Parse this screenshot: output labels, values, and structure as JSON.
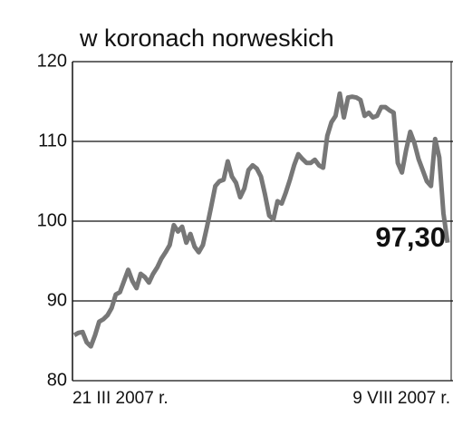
{
  "chart_data": {
    "type": "line",
    "title": "w koronach norweskich",
    "categories": [
      "21 III 2007 r.",
      null,
      null,
      null,
      null,
      null,
      null,
      null,
      null,
      null,
      null,
      null,
      null,
      null,
      null,
      null,
      null,
      null,
      null,
      null,
      null,
      null,
      null,
      null,
      null,
      null,
      null,
      null,
      null,
      null,
      null,
      null,
      null,
      null,
      null,
      null,
      null,
      null,
      null,
      null,
      null,
      null,
      null,
      null,
      null,
      null,
      null,
      null,
      null,
      null,
      null,
      null,
      null,
      null,
      null,
      null,
      null,
      null,
      null,
      null,
      null,
      null,
      null,
      null,
      null,
      null,
      null,
      null,
      null,
      null,
      null,
      null,
      null,
      null,
      null,
      null,
      null,
      null,
      null,
      null,
      null,
      null,
      null,
      null,
      null,
      null,
      null,
      null,
      null,
      null,
      "9 VIII 2007 r."
    ],
    "values": [
      85.7,
      86,
      86.1,
      84.8,
      84.3,
      85.7,
      87.4,
      87.7,
      88.2,
      89.1,
      90.8,
      91.1,
      92.5,
      93.9,
      92.5,
      91.6,
      93.4,
      93,
      92.3,
      93.4,
      94.2,
      95.3,
      96.1,
      97,
      99.5,
      98.7,
      99.3,
      97.3,
      98.4,
      96.8,
      96.1,
      97,
      99.3,
      101.8,
      104.4,
      105,
      105.2,
      107.5,
      105.6,
      104.8,
      103,
      104.1,
      106.4,
      107,
      106.6,
      105.6,
      103.3,
      100.7,
      100.2,
      102.5,
      102.2,
      103.6,
      105.2,
      107,
      108.4,
      107.8,
      107.3,
      107.3,
      107.7,
      107,
      106.7,
      110.7,
      112.4,
      113.2,
      116,
      113,
      115.5,
      115.6,
      115.5,
      115.2,
      113.2,
      113.6,
      113,
      113.2,
      114.3,
      114.3,
      113.9,
      113.6,
      107.3,
      106.1,
      108.9,
      111.2,
      109.8,
      107.8,
      106.4,
      105,
      104.4,
      110.3,
      108,
      101,
      97.3
    ],
    "value_labels": [
      null,
      null,
      null,
      null,
      null,
      null,
      null,
      null,
      null,
      null,
      null,
      null,
      null,
      null,
      null,
      null,
      null,
      null,
      null,
      null,
      null,
      null,
      null,
      null,
      null,
      null,
      null,
      null,
      null,
      null,
      null,
      null,
      null,
      null,
      null,
      null,
      null,
      null,
      null,
      null,
      null,
      null,
      null,
      null,
      null,
      null,
      null,
      null,
      null,
      null,
      null,
      null,
      null,
      null,
      null,
      null,
      null,
      null,
      null,
      null,
      null,
      null,
      null,
      null,
      null,
      null,
      null,
      null,
      null,
      null,
      null,
      null,
      null,
      null,
      null,
      null,
      null,
      null,
      null,
      null,
      null,
      null,
      null,
      null,
      null,
      null,
      null,
      null,
      null,
      null,
      "97,30"
    ],
    "color": "#777777",
    "ylim": [
      80,
      120
    ],
    "yticks": [
      80,
      90,
      100,
      110,
      120
    ],
    "grid": true
  }
}
